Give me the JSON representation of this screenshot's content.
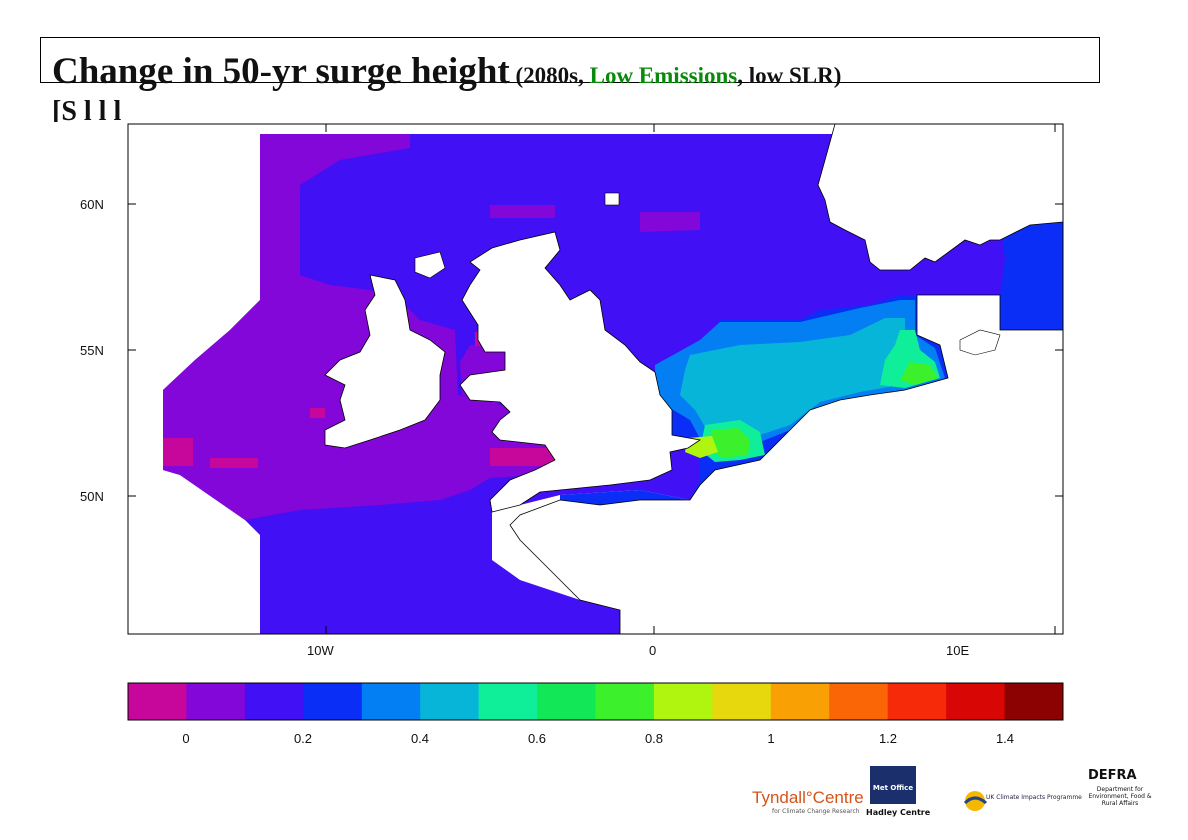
{
  "title": {
    "main": "Change in 50-yr surge height",
    "open": " (2080s, ",
    "scenario": "Low Emissions",
    "close": ", low SLR)",
    "line2": "[S       l     l     l"
  },
  "map": {
    "lat_labels": [
      "60N",
      "55N",
      "50N"
    ],
    "lon_labels": [
      "10W",
      "0",
      "10E"
    ]
  },
  "colorbar": {
    "colors": [
      "#c7079c",
      "#8207d8",
      "#4110f4",
      "#0a2ef5",
      "#047ef3",
      "#07b5d8",
      "#0fef9a",
      "#12e857",
      "#3cf12c",
      "#b0f50f",
      "#e6d80c",
      "#f9a005",
      "#fa6505",
      "#f62a09",
      "#d90606",
      "#8c0101"
    ],
    "labels": [
      "0",
      "0.2",
      "0.4",
      "0.6",
      "0.8",
      "1",
      "1.2",
      "1.4"
    ]
  },
  "logos": {
    "tyndall": "Tyndall°Centre",
    "tyndall_sub": "for Climate Change Research",
    "metoffice": "Met Office",
    "hadley": "Hadley Centre",
    "ukcip": "UK Climate Impacts Programme",
    "defra": "DEFRA",
    "defra_sub": "Department for Environment, Food & Rural Affairs"
  }
}
